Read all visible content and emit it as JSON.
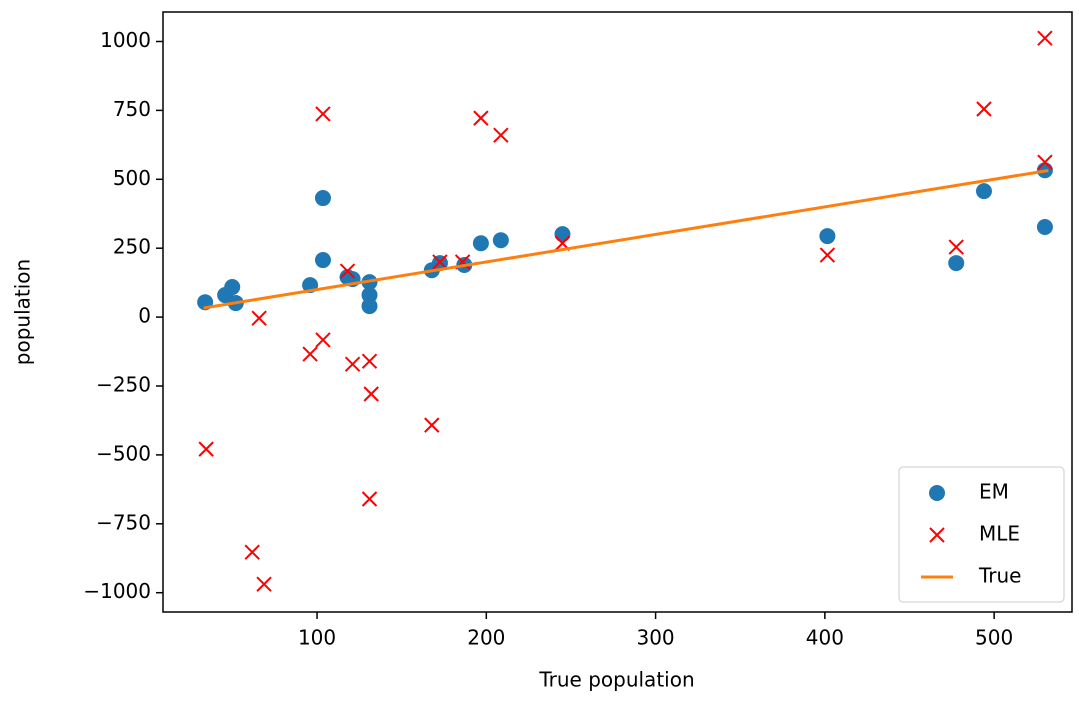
{
  "chart_data": {
    "type": "scatter",
    "xlabel": "True population",
    "ylabel": "population",
    "xlim": [
      9,
      546
    ],
    "ylim": [
      -1070,
      1107
    ],
    "xticks": [
      100,
      200,
      300,
      400,
      500
    ],
    "yticks": [
      {
        "value": -1000,
        "label": "−1000"
      },
      {
        "value": -750,
        "label": "−750"
      },
      {
        "value": -500,
        "label": "−500"
      },
      {
        "value": -250,
        "label": "−250"
      },
      0,
      250,
      500,
      750,
      1000
    ],
    "legend": "lower right",
    "grid": false,
    "series": [
      {
        "name": "EM",
        "color": "#1f77b4",
        "marker": "circle",
        "x": [
          33.9,
          45.7,
          49.9,
          52,
          95.9,
          103.5,
          103.5,
          118,
          121,
          131,
          131,
          131,
          167.8,
          172.6,
          187,
          196.8,
          208.6,
          245,
          401.5,
          477.6,
          494,
          530,
          530
        ],
        "values": [
          54,
          80,
          109,
          51,
          116,
          207,
          432,
          145,
          138,
          127,
          80,
          40,
          170,
          196,
          189,
          268,
          279,
          301,
          294,
          196,
          457,
          533,
          327
        ]
      },
      {
        "name": "MLE",
        "color": "#ff0000",
        "marker": "x",
        "x": [
          34.5,
          61.7,
          68.7,
          65.8,
          95.9,
          103.5,
          103.5,
          118,
          121,
          131,
          132,
          131,
          167.8,
          172.6,
          186,
          196.8,
          208.6,
          245,
          401.5,
          477.6,
          494,
          530,
          530
        ],
        "values": [
          -479,
          -853,
          -969,
          -4,
          -134,
          -83,
          737,
          167,
          -171,
          -160,
          -279,
          -660,
          -392,
          200,
          200,
          722,
          660,
          268,
          225,
          254,
          755,
          1012,
          562
        ]
      },
      {
        "name": "True",
        "color": "#ff7f0e",
        "marker": "line",
        "x": [
          33,
          532
        ],
        "values": [
          33,
          532
        ]
      }
    ]
  }
}
